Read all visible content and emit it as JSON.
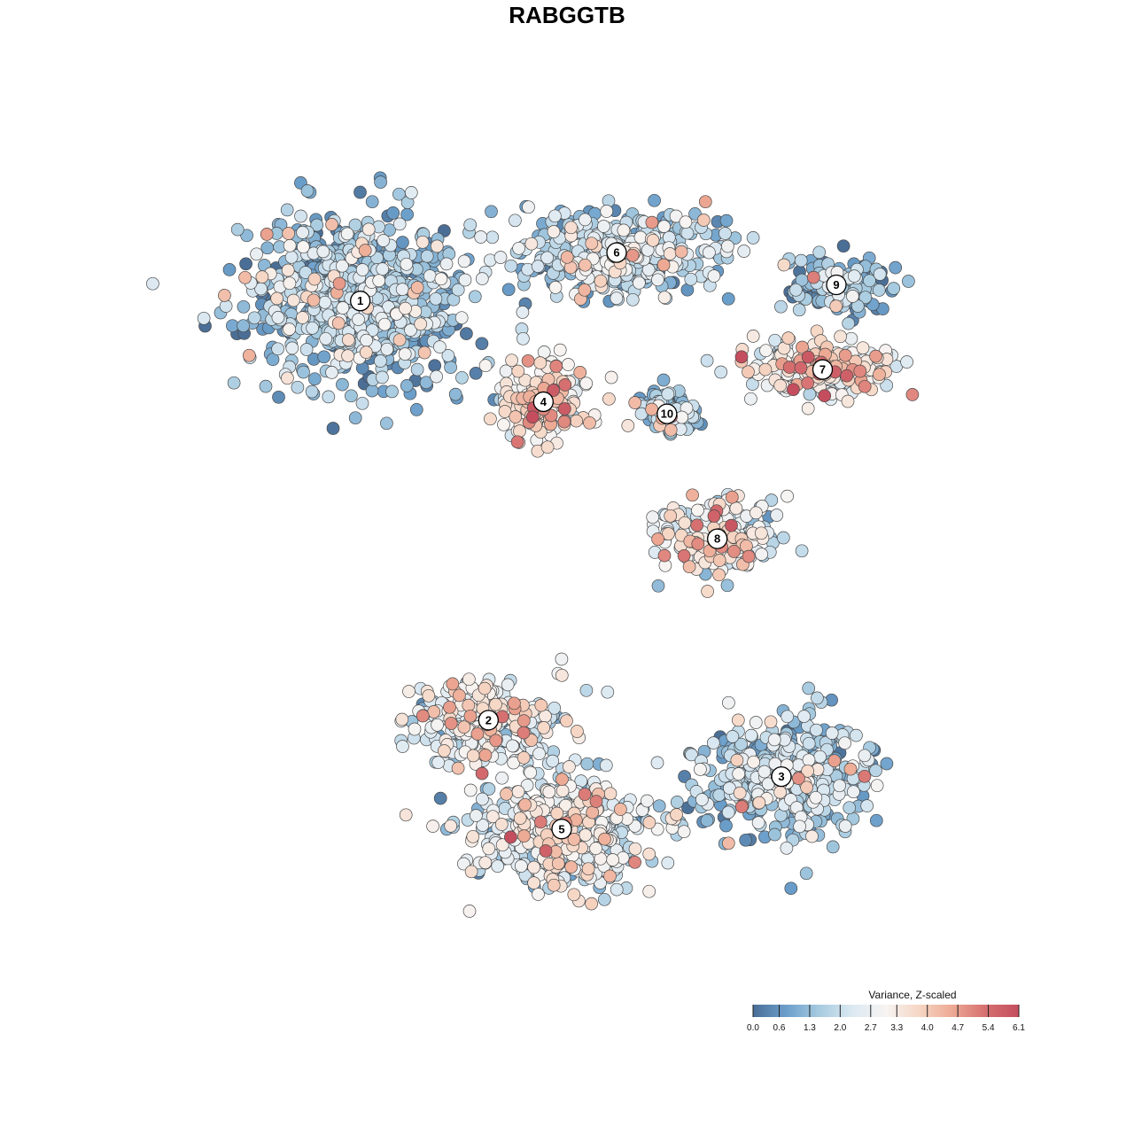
{
  "chart_data": {
    "type": "scatter",
    "title": "RABGGTB",
    "color_scale": {
      "title": "Variance, Z-scaled",
      "min": 0.0,
      "max": 6.1,
      "ticks": [
        "0.0",
        "0.6",
        "1.3",
        "2.0",
        "2.7",
        "3.3",
        "4.0",
        "4.7",
        "5.4",
        "6.1"
      ],
      "tick_values": [
        0.0,
        0.6,
        1.3,
        2.0,
        2.7,
        3.3,
        4.0,
        4.7,
        5.4,
        6.1
      ],
      "colors": [
        "#4a6e96",
        "#6b9fcb",
        "#a7cbe0",
        "#dce9f2",
        "#f7f4f2",
        "#f6d6c4",
        "#eda993",
        "#d66f70",
        "#c44e5e"
      ]
    },
    "clusters": [
      {
        "label": "1",
        "x": -5.0,
        "y": 6.6,
        "spread": [
          2.2,
          1.9
        ],
        "value": 1.4
      },
      {
        "label": "2",
        "x": -2.2,
        "y": -3.8,
        "spread": [
          1.5,
          0.9
        ],
        "value": 2.5
      },
      {
        "label": "3",
        "x": 4.2,
        "y": -5.2,
        "spread": [
          1.6,
          1.3
        ],
        "value": 1.5
      },
      {
        "label": "4",
        "x": -1.0,
        "y": 4.1,
        "spread": [
          0.9,
          0.8
        ],
        "value": 3.3
      },
      {
        "label": "5",
        "x": -0.6,
        "y": -6.5,
        "spread": [
          1.8,
          1.3
        ],
        "value": 2.4
      },
      {
        "label": "6",
        "x": 0.6,
        "y": 7.8,
        "spread": [
          1.9,
          1.0
        ],
        "value": 1.7
      },
      {
        "label": "7",
        "x": 5.1,
        "y": 4.9,
        "spread": [
          1.6,
          0.6
        ],
        "value": 3.0
      },
      {
        "label": "8",
        "x": 2.8,
        "y": 0.7,
        "spread": [
          1.2,
          0.8
        ],
        "value": 2.6
      },
      {
        "label": "9",
        "x": 5.4,
        "y": 7.0,
        "spread": [
          1.0,
          0.6
        ],
        "value": 0.9
      },
      {
        "label": "10",
        "x": 1.7,
        "y": 3.8,
        "spread": [
          0.5,
          0.5
        ],
        "value": 1.4
      }
    ],
    "xlim": [
      -9,
      9
    ],
    "ylim": [
      -10,
      10
    ],
    "grid": false,
    "legend_position": "bottom-right"
  }
}
